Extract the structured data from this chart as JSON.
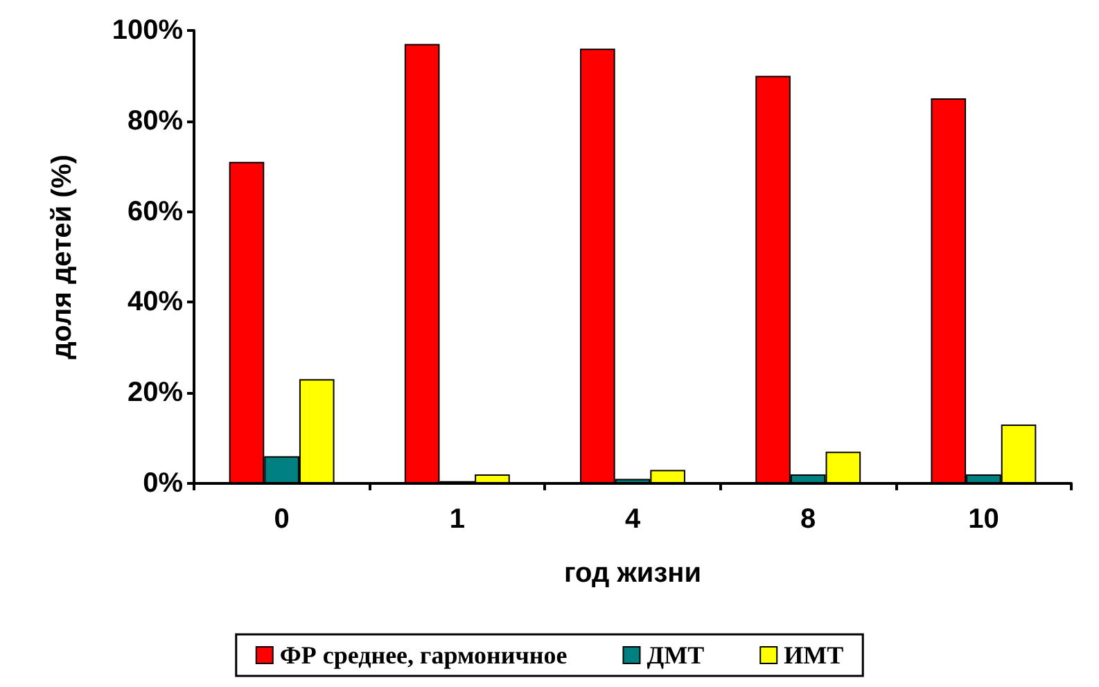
{
  "chart_data": {
    "type": "bar",
    "xlabel": "год жизни",
    "ylabel": "доля детей (%)",
    "categories": [
      "0",
      "1",
      "4",
      "8",
      "10"
    ],
    "series": [
      {
        "name": "ФР среднее, гармоничное",
        "color": "#ff0000",
        "values": [
          71,
          97,
          96,
          90,
          85
        ]
      },
      {
        "name": "ДМТ",
        "color": "#008080",
        "values": [
          6,
          0.5,
          1,
          2,
          2
        ]
      },
      {
        "name": "ИМТ",
        "color": "#ffff00",
        "values": [
          23,
          2,
          3,
          7,
          13
        ]
      }
    ],
    "ylim": [
      0,
      100
    ],
    "yticks": [
      {
        "value": 0,
        "label": "0%"
      },
      {
        "value": 20,
        "label": "20%"
      },
      {
        "value": 40,
        "label": "40%"
      },
      {
        "value": 60,
        "label": "60%"
      },
      {
        "value": 80,
        "label": "80%"
      },
      {
        "value": 100,
        "label": "100%"
      }
    ],
    "grid": false,
    "legend": "bottom"
  }
}
